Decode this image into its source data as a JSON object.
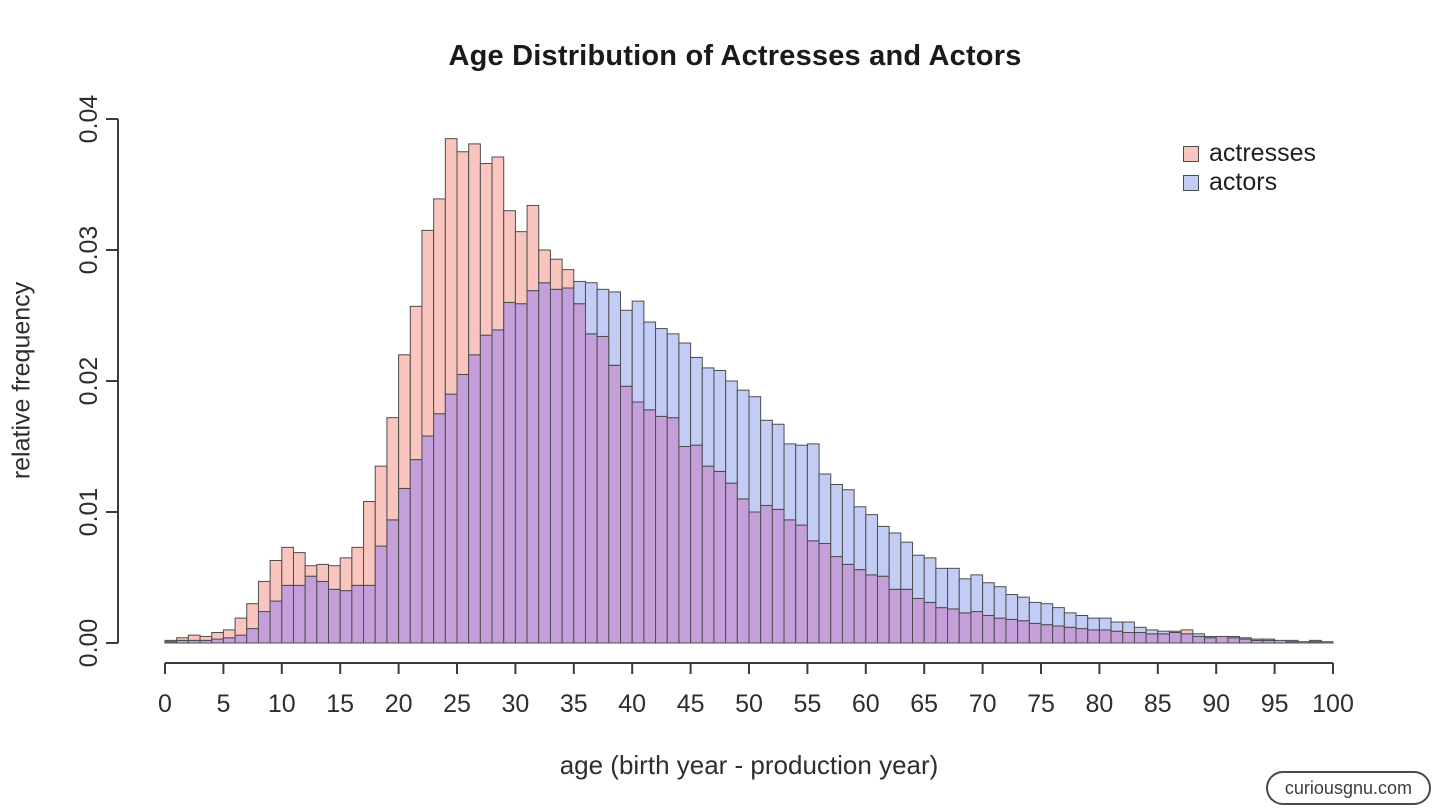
{
  "title": "Age Distribution of Actresses and Actors",
  "watermark": "curiousgnu.com",
  "colors": {
    "actresses_fill": "#FAC5BE",
    "actors_fill": "#C2CCF4",
    "overlap_fill": "#C59FDA",
    "bar_border": "#4d4d4d",
    "axis": "#3c3c3c",
    "tick_text": "#2e2e2e",
    "title_text": "#1a1a1a"
  },
  "chart_data": {
    "type": "bar",
    "subtype": "overlapping-histogram",
    "title": "Age Distribution of Actresses and Actors",
    "xlabel": "age (birth year - production year)",
    "ylabel": "relative frequency",
    "xlim": [
      0,
      100
    ],
    "ylim": [
      0,
      0.04
    ],
    "bin_width": 1,
    "grid": false,
    "legend_position": "top-right",
    "x_ticks": [
      0,
      5,
      10,
      15,
      20,
      25,
      30,
      35,
      40,
      45,
      50,
      55,
      60,
      65,
      70,
      75,
      80,
      85,
      90,
      95,
      100
    ],
    "y_tick_values": [
      0,
      0.01,
      0.02,
      0.03,
      0.04
    ],
    "y_tick_labels": [
      "0.00",
      "0.01",
      "0.02",
      "0.03",
      "0.04"
    ],
    "ages": [
      0,
      1,
      2,
      3,
      4,
      5,
      6,
      7,
      8,
      9,
      10,
      11,
      12,
      13,
      14,
      15,
      16,
      17,
      18,
      19,
      20,
      21,
      22,
      23,
      24,
      25,
      26,
      27,
      28,
      29,
      30,
      31,
      32,
      33,
      34,
      35,
      36,
      37,
      38,
      39,
      40,
      41,
      42,
      43,
      44,
      45,
      46,
      47,
      48,
      49,
      50,
      51,
      52,
      53,
      54,
      55,
      56,
      57,
      58,
      59,
      60,
      61,
      62,
      63,
      64,
      65,
      66,
      67,
      68,
      69,
      70,
      71,
      72,
      73,
      74,
      75,
      76,
      77,
      78,
      79,
      80,
      81,
      82,
      83,
      84,
      85,
      86,
      87,
      88,
      89,
      90,
      91,
      92,
      93,
      94,
      95,
      96,
      97,
      98,
      99
    ],
    "series": [
      {
        "name": "actresses",
        "color": "#FAC5BE",
        "values": [
          0.0001,
          0.0004,
          0.0006,
          0.0005,
          0.0008,
          0.001,
          0.0019,
          0.003,
          0.0047,
          0.0063,
          0.0073,
          0.0069,
          0.0059,
          0.006,
          0.0059,
          0.0065,
          0.0073,
          0.0108,
          0.0135,
          0.0172,
          0.022,
          0.0257,
          0.0315,
          0.0339,
          0.0385,
          0.0375,
          0.0381,
          0.0366,
          0.0371,
          0.033,
          0.0314,
          0.0334,
          0.03,
          0.0293,
          0.0285,
          0.0259,
          0.0236,
          0.0234,
          0.0212,
          0.0196,
          0.0184,
          0.0178,
          0.0173,
          0.0172,
          0.015,
          0.0151,
          0.0135,
          0.0131,
          0.0122,
          0.011,
          0.01,
          0.0105,
          0.0102,
          0.0094,
          0.009,
          0.0078,
          0.0076,
          0.0066,
          0.006,
          0.0056,
          0.0052,
          0.0051,
          0.0041,
          0.0041,
          0.0034,
          0.0031,
          0.0027,
          0.0026,
          0.0023,
          0.0024,
          0.0021,
          0.0019,
          0.0018,
          0.0017,
          0.0015,
          0.0014,
          0.0013,
          0.0012,
          0.0011,
          0.001,
          0.001,
          0.0009,
          0.0008,
          0.0008,
          0.0007,
          0.0007,
          0.0009,
          0.001,
          0.0005,
          0.0004,
          0.0005,
          0.0005,
          0.0003,
          0.0002,
          0.0002,
          0.0002,
          0.0001,
          0.0001,
          0.0002,
          0.0001
        ]
      },
      {
        "name": "actors",
        "color": "#C2CCF4",
        "values": [
          0.0002,
          0.0002,
          0.0002,
          0.0002,
          0.0003,
          0.0004,
          0.0006,
          0.0011,
          0.0024,
          0.0032,
          0.0044,
          0.0044,
          0.0051,
          0.0047,
          0.0041,
          0.004,
          0.0044,
          0.0044,
          0.0074,
          0.0094,
          0.0118,
          0.014,
          0.0158,
          0.0175,
          0.019,
          0.0205,
          0.022,
          0.0235,
          0.0239,
          0.026,
          0.0259,
          0.0269,
          0.0275,
          0.027,
          0.0271,
          0.0276,
          0.0275,
          0.027,
          0.0268,
          0.0254,
          0.0261,
          0.0245,
          0.024,
          0.0236,
          0.0229,
          0.0218,
          0.021,
          0.0208,
          0.02,
          0.0193,
          0.0188,
          0.017,
          0.0167,
          0.0152,
          0.0151,
          0.0152,
          0.0129,
          0.0121,
          0.0117,
          0.0104,
          0.0098,
          0.0089,
          0.0084,
          0.0077,
          0.0067,
          0.0065,
          0.0057,
          0.0057,
          0.0049,
          0.0052,
          0.0046,
          0.0043,
          0.0037,
          0.0035,
          0.0031,
          0.003,
          0.0027,
          0.0023,
          0.0021,
          0.0019,
          0.0019,
          0.0016,
          0.0016,
          0.0012,
          0.001,
          0.0009,
          0.0008,
          0.0007,
          0.0007,
          0.0005,
          0.0005,
          0.0004,
          0.0004,
          0.0003,
          0.0003,
          0.0002,
          0.0002,
          0.0001,
          0.0001,
          0.0001
        ]
      }
    ]
  },
  "legend": {
    "items": [
      {
        "label": "actresses"
      },
      {
        "label": "actors"
      }
    ]
  }
}
